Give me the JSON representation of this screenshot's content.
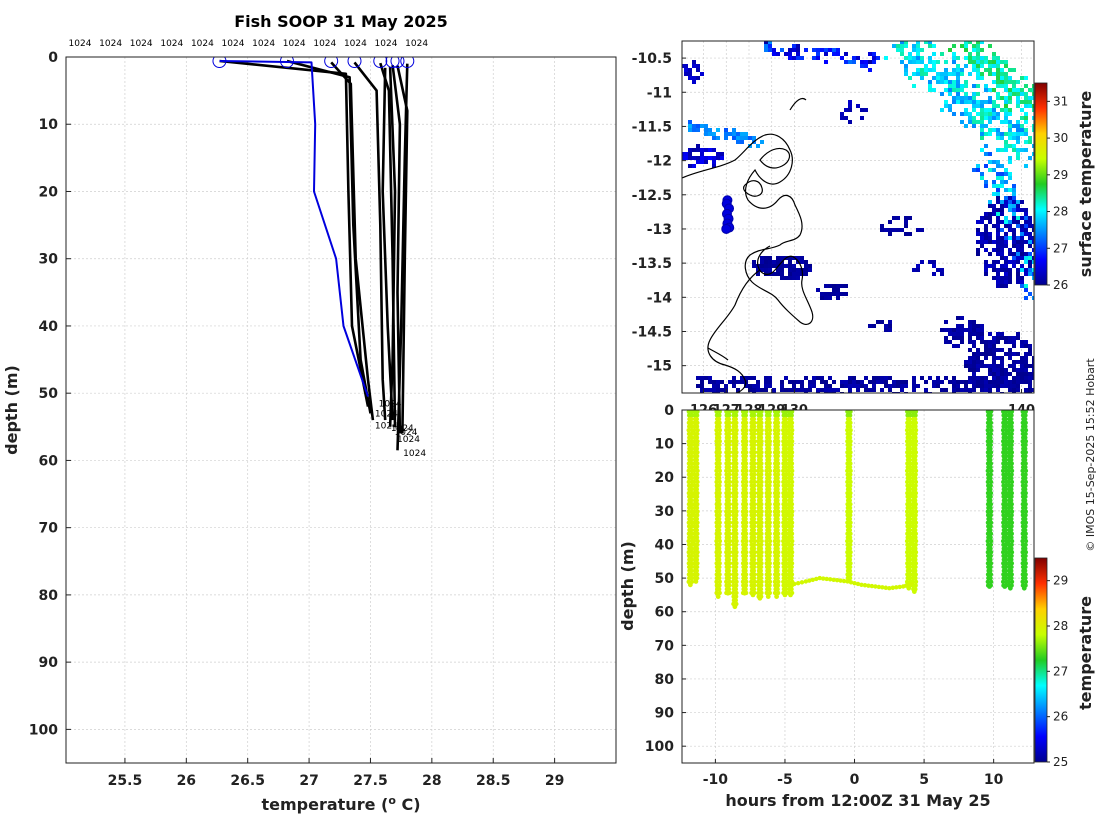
{
  "colors": {
    "profile_black": "#000000",
    "profile_blue": "#0000dd",
    "grid": "#c8c8c8",
    "land_coast": "#000000"
  },
  "chart_data": [
    {
      "id": "profile",
      "type": "line",
      "title": "Fish SOOP 31 May 2025",
      "xlabel": "temperature (",
      "xlabel_sup": "o",
      "xlabel_end": " C)",
      "ylabel": "depth (m)",
      "xlim": [
        25.02,
        29.5
      ],
      "ylim": [
        0,
        105
      ],
      "y_reversed": true,
      "xticks": [
        25.5,
        26,
        26.5,
        27,
        27.5,
        28,
        28.5,
        29
      ],
      "xtick_labels": [
        "25.5",
        "26",
        "26.5",
        "27",
        "27.5",
        "28",
        "28.5",
        "29"
      ],
      "yticks": [
        0,
        10,
        20,
        30,
        40,
        50,
        60,
        70,
        80,
        90,
        100
      ],
      "ytick_labels": [
        "0",
        "10",
        "20",
        "30",
        "40",
        "50",
        "60",
        "70",
        "80",
        "90",
        "100"
      ],
      "grid": true,
      "top_labels": [
        "1024",
        "1024",
        "1024",
        "1024",
        "1024",
        "1024",
        "1024",
        "1024",
        "1024",
        "1024",
        "1024",
        "1024"
      ],
      "surface_markers": [
        26.27,
        26.82,
        27.18,
        27.37,
        27.58,
        27.68,
        27.72,
        27.8
      ],
      "bottom_labels": [
        {
          "text": "1024",
          "t": 27.55,
          "d": 51.5
        },
        {
          "text": "1024",
          "t": 27.52,
          "d": 53.0
        },
        {
          "text": "1024",
          "t": 27.52,
          "d": 54.8
        },
        {
          "text": "1024",
          "t": 27.65,
          "d": 55.2
        },
        {
          "text": "1024",
          "t": 27.68,
          "d": 55.8
        },
        {
          "text": "1024",
          "t": 27.7,
          "d": 56.8
        },
        {
          "text": "1024",
          "t": 27.75,
          "d": 58.9
        }
      ],
      "blue_series": {
        "name": "first cast",
        "points": [
          [
            26.27,
            0.6
          ],
          [
            27.02,
            0.8
          ],
          [
            27.05,
            10
          ],
          [
            27.04,
            20
          ],
          [
            27.22,
            30
          ],
          [
            27.28,
            40
          ],
          [
            27.48,
            50.5
          ]
        ]
      },
      "black_series": [
        {
          "points": [
            [
              26.27,
              0.6
            ],
            [
              27.3,
              2.5
            ],
            [
              27.32,
              20
            ],
            [
              27.35,
              40
            ],
            [
              27.48,
              52
            ]
          ]
        },
        {
          "points": [
            [
              26.82,
              0.6
            ],
            [
              27.33,
              3
            ],
            [
              27.36,
              25
            ],
            [
              27.42,
              45
            ],
            [
              27.5,
              53
            ]
          ]
        },
        {
          "points": [
            [
              27.18,
              0.8
            ],
            [
              27.34,
              4
            ],
            [
              27.38,
              30
            ],
            [
              27.48,
              48
            ],
            [
              27.52,
              54
            ]
          ]
        },
        {
          "points": [
            [
              27.37,
              0.8
            ],
            [
              27.55,
              5
            ],
            [
              27.58,
              25
            ],
            [
              27.6,
              48
            ],
            [
              27.62,
              54
            ]
          ]
        },
        {
          "points": [
            [
              27.58,
              0.9
            ],
            [
              27.65,
              5
            ],
            [
              27.68,
              30
            ],
            [
              27.7,
              55
            ]
          ]
        },
        {
          "points": [
            [
              27.68,
              1.2
            ],
            [
              27.74,
              10
            ],
            [
              27.72,
              35
            ],
            [
              27.74,
              56
            ]
          ]
        },
        {
          "points": [
            [
              27.72,
              1.3
            ],
            [
              27.8,
              8
            ],
            [
              27.78,
              30
            ],
            [
              27.76,
              56
            ]
          ]
        },
        {
          "points": [
            [
              27.8,
              1.0
            ],
            [
              27.78,
              15
            ],
            [
              27.75,
              40
            ],
            [
              27.72,
              58.5
            ]
          ]
        },
        {
          "points": [
            [
              27.66,
              1.5
            ],
            [
              27.7,
              20
            ],
            [
              27.68,
              45
            ],
            [
              27.66,
              55
            ]
          ]
        },
        {
          "points": [
            [
              27.62,
              1.6
            ],
            [
              27.6,
              20
            ],
            [
              27.64,
              40
            ],
            [
              27.68,
              54
            ]
          ]
        }
      ]
    },
    {
      "id": "map",
      "type": "heatmap",
      "xlim": [
        125.05,
        140.55
      ],
      "ylim": [
        -15.4,
        -10.25
      ],
      "xticks": [
        126,
        127,
        128,
        129,
        130,
        140
      ],
      "xtick_labels": [
        "126",
        "127",
        "128",
        "129",
        "130",
        "140"
      ],
      "yticks": [
        -10.5,
        -11,
        -11.5,
        -12,
        -12.5,
        -13,
        -13.5,
        -14,
        -14.5,
        -15
      ],
      "ytick_labels": [
        "-10.5",
        "-11",
        "-11.5",
        "-12",
        "-12.5",
        "-13",
        "-13.5",
        "-14",
        "-14.5",
        "-15"
      ],
      "colorbar_label": "surface temperature",
      "colorbar_range": [
        26,
        31.5
      ],
      "colorbar_ticks": [
        26,
        27,
        28,
        29,
        30,
        31
      ],
      "colorbar_tick_labels": [
        "26",
        "27",
        "28",
        "29",
        "30",
        "31"
      ],
      "cast_positions": [
        [
          -12.58
        ],
        [
          -12.63
        ],
        [
          -12.7
        ],
        [
          -12.78
        ],
        [
          -12.85
        ],
        [
          -12.92
        ],
        [
          -12.98
        ],
        [
          -13.0
        ]
      ],
      "cast_lon_offsets": [
        0.0,
        -0.03,
        0.07,
        -0.02,
        0.05,
        0.0,
        0.08,
        -0.05
      ]
    },
    {
      "id": "timeseries",
      "type": "scatter",
      "xlabel": "hours from 12:00Z 31 May 25",
      "ylabel": "depth (m)",
      "xlim": [
        -12.4,
        12.9
      ],
      "ylim": [
        0,
        105
      ],
      "y_reversed": true,
      "xticks": [
        -10,
        -5,
        0,
        5,
        10
      ],
      "xtick_labels": [
        "-10",
        "-5",
        "0",
        "5",
        "10"
      ],
      "yticks": [
        0,
        10,
        20,
        30,
        40,
        50,
        60,
        70,
        80,
        90,
        100
      ],
      "ytick_labels": [
        "0",
        "10",
        "20",
        "30",
        "40",
        "50",
        "60",
        "70",
        "80",
        "90",
        "100"
      ],
      "colorbar_label": "temperature",
      "colorbar_range": [
        25,
        29.5
      ],
      "colorbar_ticks": [
        25,
        26,
        27,
        28,
        29
      ],
      "colorbar_tick_labels": [
        "25",
        "26",
        "27",
        "28",
        "29"
      ],
      "casts": [
        {
          "t": -11.8,
          "bottom": 52,
          "temp": 27.95
        },
        {
          "t": -11.4,
          "bottom": 51,
          "temp": 27.95
        },
        {
          "t": -9.8,
          "bottom": 55.5,
          "temp": 27.95
        },
        {
          "t": -9.1,
          "bottom": 54.5,
          "temp": 27.95
        },
        {
          "t": -8.6,
          "bottom": 58.5,
          "temp": 27.95
        },
        {
          "t": -7.9,
          "bottom": 54.5,
          "temp": 27.95
        },
        {
          "t": -7.3,
          "bottom": 55,
          "temp": 27.95
        },
        {
          "t": -6.8,
          "bottom": 56,
          "temp": 27.95
        },
        {
          "t": -6.2,
          "bottom": 55.5,
          "temp": 27.95
        },
        {
          "t": -5.6,
          "bottom": 55.5,
          "temp": 27.95
        },
        {
          "t": -5.0,
          "bottom": 55,
          "temp": 27.9
        },
        {
          "t": -4.6,
          "bottom": 55,
          "temp": 27.9
        },
        {
          "t": -0.4,
          "bottom": 50.5,
          "temp": 27.85
        },
        {
          "t": 3.9,
          "bottom": 53,
          "temp": 27.85
        },
        {
          "t": 4.3,
          "bottom": 54,
          "temp": 27.85
        },
        {
          "t": 9.7,
          "bottom": 52.5,
          "temp": 27.3
        },
        {
          "t": 10.8,
          "bottom": 52.5,
          "temp": 27.3
        },
        {
          "t": 11.2,
          "bottom": 53,
          "temp": 27.3
        },
        {
          "t": 12.2,
          "bottom": 53,
          "temp": 27.3
        }
      ],
      "bottom_track": [
        [
          -4.6,
          52
        ],
        [
          -3.5,
          51
        ],
        [
          -2.5,
          50
        ],
        [
          -1.5,
          50.5
        ],
        [
          -0.5,
          51
        ],
        [
          0.5,
          52
        ],
        [
          1.5,
          52.5
        ],
        [
          2.5,
          53
        ],
        [
          3.5,
          52.5
        ],
        [
          4.3,
          51.5
        ]
      ]
    }
  ],
  "credit": "© IMOS 15-Sep-2025 15:52 Hobart"
}
